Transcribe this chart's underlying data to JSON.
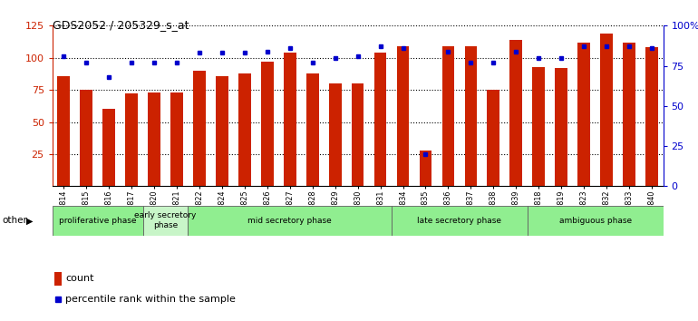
{
  "title": "GDS2052 / 205329_s_at",
  "samples": [
    "GSM109814",
    "GSM109815",
    "GSM109816",
    "GSM109817",
    "GSM109820",
    "GSM109821",
    "GSM109822",
    "GSM109824",
    "GSM109825",
    "GSM109826",
    "GSM109827",
    "GSM109828",
    "GSM109829",
    "GSM109830",
    "GSM109831",
    "GSM109834",
    "GSM109835",
    "GSM109836",
    "GSM109837",
    "GSM109838",
    "GSM109839",
    "GSM109818",
    "GSM109819",
    "GSM109823",
    "GSM109832",
    "GSM109833",
    "GSM109840"
  ],
  "counts": [
    86,
    75,
    60,
    72,
    73,
    73,
    90,
    86,
    88,
    97,
    104,
    88,
    80,
    80,
    104,
    109,
    28,
    109,
    109,
    75,
    114,
    93,
    92,
    112,
    119,
    112,
    108
  ],
  "percentile": [
    81,
    77,
    68,
    77,
    77,
    77,
    83,
    83,
    83,
    84,
    86,
    77,
    80,
    81,
    87,
    86,
    20,
    84,
    77,
    77,
    84,
    80,
    80,
    87,
    87,
    87,
    86
  ],
  "phases": [
    {
      "label": "proliferative phase",
      "start": 0,
      "end": 4,
      "color": "#90ee90"
    },
    {
      "label": "early secretory\nphase",
      "start": 4,
      "end": 6,
      "color": "#c8f5c8"
    },
    {
      "label": "mid secretory phase",
      "start": 6,
      "end": 15,
      "color": "#90ee90"
    },
    {
      "label": "late secretory phase",
      "start": 15,
      "end": 21,
      "color": "#90ee90"
    },
    {
      "label": "ambiguous phase",
      "start": 21,
      "end": 27,
      "color": "#90ee90"
    }
  ],
  "bar_color": "#cc2200",
  "dot_color": "#0000cc",
  "left_yticks": [
    25,
    50,
    75,
    100,
    125
  ],
  "right_ytick_vals": [
    0,
    25,
    50,
    75,
    100
  ],
  "right_ytick_labels": [
    "0",
    "25",
    "50",
    "75",
    "100%"
  ],
  "ylim_max": 125,
  "fig_w": 7.7,
  "fig_h": 3.54,
  "fig_dpi": 100
}
